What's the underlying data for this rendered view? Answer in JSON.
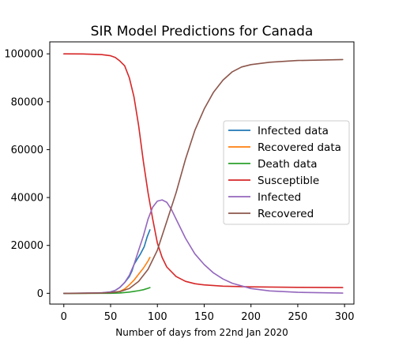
{
  "chart_data": {
    "type": "line",
    "title": "SIR Model Predictions for Canada",
    "xlabel": "Number of days from 22nd Jan 2020",
    "ylabel": "",
    "xlim": [
      -15,
      310
    ],
    "ylim": [
      -4500,
      105000
    ],
    "xticks": [
      0,
      50,
      100,
      150,
      200,
      250,
      300
    ],
    "yticks": [
      0,
      20000,
      40000,
      60000,
      80000,
      100000
    ],
    "grid": false,
    "legend_position": "center-right",
    "series": [
      {
        "name": "Infected data",
        "color": "#1f77b4",
        "points": [
          [
            0,
            0
          ],
          [
            30,
            50
          ],
          [
            40,
            150
          ],
          [
            45,
            300
          ],
          [
            50,
            600
          ],
          [
            55,
            1200
          ],
          [
            60,
            2500
          ],
          [
            65,
            4500
          ],
          [
            70,
            7000
          ],
          [
            73,
            9500
          ],
          [
            75,
            12000
          ],
          [
            78,
            14000
          ],
          [
            82,
            16500
          ],
          [
            86,
            19500
          ],
          [
            89,
            23500
          ],
          [
            92,
            26500
          ]
        ]
      },
      {
        "name": "Recovered data",
        "color": "#ff7f0e",
        "points": [
          [
            0,
            0
          ],
          [
            40,
            50
          ],
          [
            50,
            200
          ],
          [
            60,
            800
          ],
          [
            65,
            1800
          ],
          [
            70,
            3500
          ],
          [
            75,
            5500
          ],
          [
            80,
            8000
          ],
          [
            85,
            10500
          ],
          [
            90,
            13500
          ],
          [
            92,
            15000
          ]
        ]
      },
      {
        "name": "Death data",
        "color": "#2ca02c",
        "points": [
          [
            0,
            0
          ],
          [
            50,
            30
          ],
          [
            60,
            150
          ],
          [
            70,
            500
          ],
          [
            75,
            800
          ],
          [
            80,
            1100
          ],
          [
            85,
            1500
          ],
          [
            90,
            2100
          ],
          [
            92,
            2400
          ]
        ]
      },
      {
        "name": "Susceptible",
        "color": "#d62728",
        "points": [
          [
            0,
            100000
          ],
          [
            20,
            99950
          ],
          [
            40,
            99700
          ],
          [
            50,
            99200
          ],
          [
            55,
            98500
          ],
          [
            60,
            97000
          ],
          [
            65,
            95000
          ],
          [
            70,
            90000
          ],
          [
            75,
            82000
          ],
          [
            80,
            70000
          ],
          [
            85,
            55000
          ],
          [
            90,
            42000
          ],
          [
            95,
            31000
          ],
          [
            100,
            21000
          ],
          [
            105,
            15000
          ],
          [
            110,
            11000
          ],
          [
            120,
            7000
          ],
          [
            130,
            5000
          ],
          [
            140,
            4000
          ],
          [
            150,
            3500
          ],
          [
            170,
            3000
          ],
          [
            200,
            2700
          ],
          [
            250,
            2500
          ],
          [
            298,
            2400
          ]
        ]
      },
      {
        "name": "Infected",
        "color": "#9467bd",
        "points": [
          [
            0,
            0
          ],
          [
            40,
            200
          ],
          [
            50,
            600
          ],
          [
            55,
            1200
          ],
          [
            60,
            2500
          ],
          [
            65,
            4500
          ],
          [
            70,
            7500
          ],
          [
            75,
            12000
          ],
          [
            80,
            18000
          ],
          [
            85,
            24000
          ],
          [
            90,
            31000
          ],
          [
            95,
            36000
          ],
          [
            100,
            38500
          ],
          [
            105,
            39000
          ],
          [
            110,
            38000
          ],
          [
            115,
            35000
          ],
          [
            120,
            31000
          ],
          [
            130,
            23000
          ],
          [
            140,
            16500
          ],
          [
            150,
            12000
          ],
          [
            160,
            8500
          ],
          [
            170,
            6000
          ],
          [
            180,
            4200
          ],
          [
            200,
            2000
          ],
          [
            220,
            1000
          ],
          [
            250,
            400
          ],
          [
            298,
            100
          ]
        ]
      },
      {
        "name": "Recovered",
        "color": "#8c564b",
        "points": [
          [
            0,
            0
          ],
          [
            40,
            100
          ],
          [
            50,
            300
          ],
          [
            60,
            700
          ],
          [
            70,
            2000
          ],
          [
            80,
            5000
          ],
          [
            90,
            10000
          ],
          [
            100,
            18000
          ],
          [
            110,
            30000
          ],
          [
            120,
            42000
          ],
          [
            130,
            56000
          ],
          [
            140,
            68000
          ],
          [
            150,
            77000
          ],
          [
            160,
            84000
          ],
          [
            170,
            89000
          ],
          [
            180,
            92500
          ],
          [
            190,
            94500
          ],
          [
            200,
            95500
          ],
          [
            220,
            96500
          ],
          [
            250,
            97200
          ],
          [
            298,
            97600
          ]
        ]
      }
    ]
  }
}
